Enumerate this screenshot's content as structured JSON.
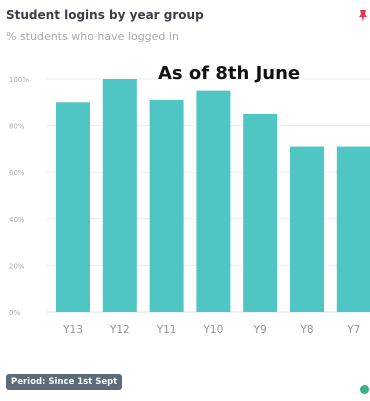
{
  "card": {
    "title": "Student logins by year group",
    "subtitle": "% students who have logged in",
    "annotation": "As of 8th June",
    "period_label": "Period: Since 1st Sept"
  },
  "colors": {
    "bar": "#4fc6c4",
    "grid": "#e9ecee",
    "tick_text": "#a7acb0",
    "pin": "#e8384f",
    "badge": "#5b6b7a",
    "status": "#36b37e"
  },
  "icons": {
    "corner": "pin-icon",
    "status": "status-dot-icon"
  },
  "chart_data": {
    "type": "bar",
    "title": "Student logins by year group",
    "subtitle": "% students who have logged in",
    "annotation": "As of 8th June",
    "categories": [
      "Y13",
      "Y12",
      "Y11",
      "Y10",
      "Y9",
      "Y8",
      "Y7"
    ],
    "values": [
      90,
      100,
      91,
      95,
      85,
      71,
      71
    ],
    "ylim": [
      0,
      100
    ],
    "yticks": [
      0,
      20,
      40,
      60,
      80,
      100
    ],
    "ytick_labels": [
      "0%",
      "20%",
      "40%",
      "60%",
      "80%",
      "100%"
    ],
    "xlabel": "",
    "ylabel": "",
    "grid": true,
    "legend": "none"
  }
}
